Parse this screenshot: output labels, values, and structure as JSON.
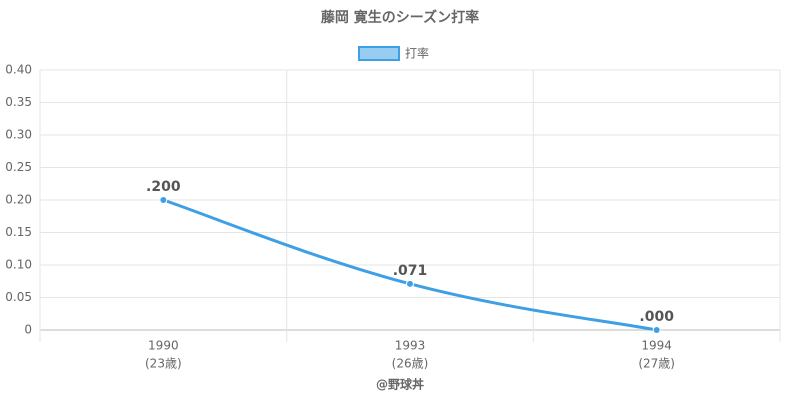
{
  "chart_data": {
    "type": "line",
    "title": "藤岡 寛生のシーズン打率",
    "categories": [
      "1990",
      "1993",
      "1994"
    ],
    "category_sublabels": [
      "(23歳)",
      "(26歳)",
      "(27歳)"
    ],
    "series": [
      {
        "name": "打率",
        "color": "#3ea0e4",
        "values": [
          0.2,
          0.071,
          0
        ],
        "value_labels": [
          ".200",
          ".071",
          ".000"
        ]
      }
    ],
    "ylim": [
      0,
      0.4
    ],
    "yticks": [
      0,
      0.05,
      {
        "value": 0.1,
        "label": "0.10"
      },
      0.15,
      {
        "value": 0.2,
        "label": "0.20"
      },
      0.25,
      {
        "value": 0.3,
        "label": "0.30"
      },
      0.35,
      {
        "value": 0.4,
        "label": "0.40"
      }
    ],
    "grid": true,
    "legend": "top",
    "credit": "@野球丼"
  }
}
